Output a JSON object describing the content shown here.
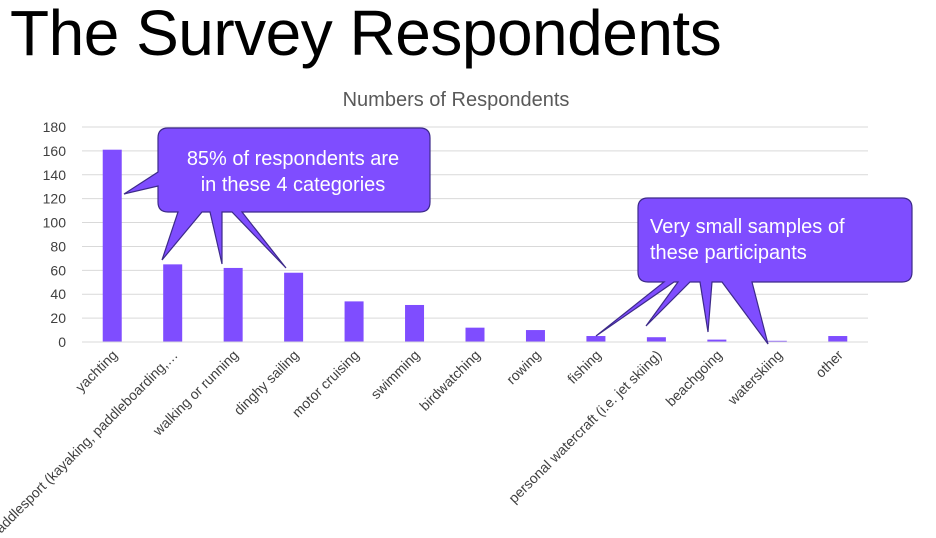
{
  "slide_title": "The Survey Respondents",
  "chart_data": {
    "type": "bar",
    "title": "Numbers of Respondents",
    "xlabel": "",
    "ylabel": "",
    "ylim": [
      0,
      180
    ],
    "yticks": [
      0,
      20,
      40,
      60,
      80,
      100,
      120,
      140,
      160,
      180
    ],
    "grid": true,
    "legend": "none",
    "bar_color": "#7F4DFF",
    "categories": [
      "yachting",
      "paddlesport (kayaking, paddleboarding,…",
      "walking or running",
      "dinghy sailing",
      "motor cruising",
      "swimming",
      "birdwatching",
      "rowing",
      "fishing",
      "personal watercraft (i.e. jet skiing)",
      "beachgoing",
      "waterskiing",
      "other"
    ],
    "values": [
      161,
      65,
      62,
      58,
      34,
      31,
      12,
      10,
      5,
      4,
      2,
      1,
      5
    ]
  },
  "callouts": [
    {
      "text_lines": [
        "85% of respondents are",
        "in these 4 categories"
      ],
      "color": "#7F4DFF"
    },
    {
      "text_lines": [
        "Very small samples of",
        "these participants"
      ],
      "color": "#7F4DFF"
    }
  ]
}
